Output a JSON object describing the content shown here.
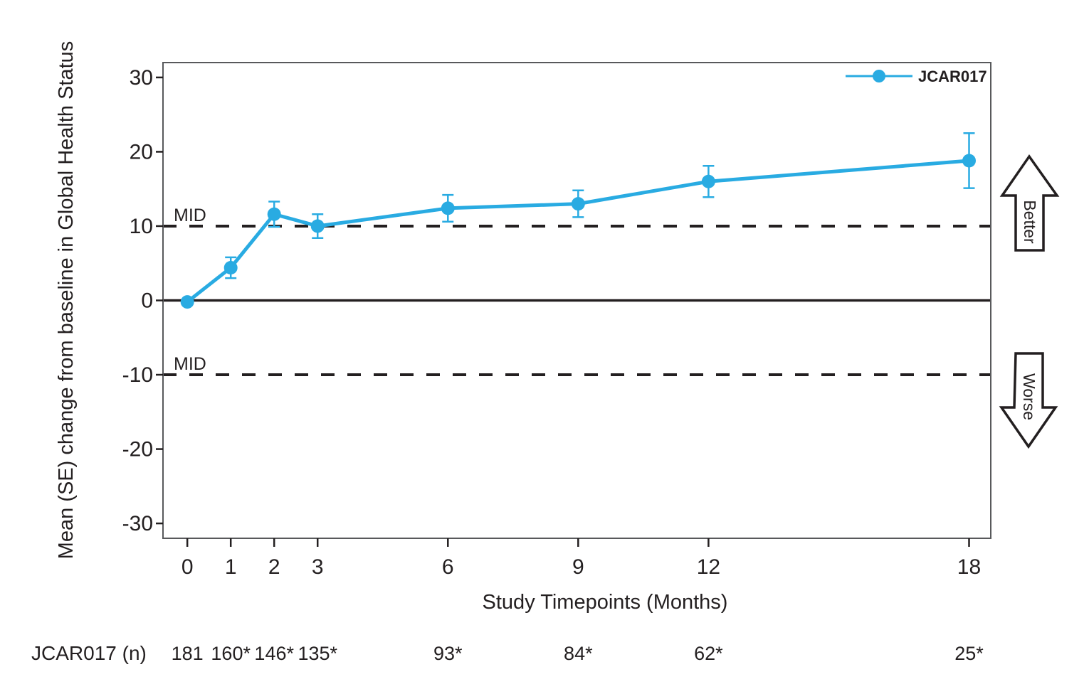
{
  "colors": {
    "series": "#29ABE2",
    "axis_frame": "#58595B",
    "ink": "#231F20",
    "background": "#FFFFFF"
  },
  "chart_data": {
    "type": "line",
    "title": "",
    "xlabel": "Study Timepoints (Months)",
    "ylabel": "Mean (SE) change from baseline in Global Health Status",
    "x": [
      0,
      1,
      2,
      3,
      6,
      9,
      12,
      18
    ],
    "x_tick_labels": [
      "0",
      "1",
      "2",
      "3",
      "6",
      "9",
      "12",
      "18"
    ],
    "y_ticks": [
      30,
      20,
      10,
      0,
      -10,
      -20,
      -30
    ],
    "y_tick_labels": [
      "30",
      "20",
      "10",
      "0",
      "-10",
      "-20",
      "-30"
    ],
    "ylim": [
      -32,
      32
    ],
    "xlim": [
      -0.56,
      18.5
    ],
    "grid": false,
    "series": [
      {
        "name": "JCAR017",
        "color": "#29ABE2",
        "means": [
          -0.2,
          4.4,
          11.6,
          10.0,
          12.4,
          13.0,
          16.0,
          18.8
        ],
        "se": [
          0.0,
          1.4,
          1.7,
          1.6,
          1.8,
          1.8,
          2.1,
          3.7
        ]
      }
    ],
    "reference_lines": [
      {
        "y": 10,
        "style": "dashed",
        "label": "MID"
      },
      {
        "y": -10,
        "style": "dashed",
        "label": "MID"
      },
      {
        "y": 0,
        "style": "solid",
        "label": ""
      }
    ],
    "legend": {
      "position": "top-right-inside",
      "entries": [
        {
          "label": "JCAR017",
          "color": "#29ABE2"
        }
      ]
    },
    "annotations": [
      {
        "type": "arrow-up",
        "label": "Better"
      },
      {
        "type": "arrow-down",
        "label": "Worse"
      }
    ],
    "n_row": {
      "label": "JCAR017 (n)",
      "values": [
        "181",
        "160*",
        "146*",
        "135*",
        "93*",
        "84*",
        "62*",
        "25*"
      ]
    }
  }
}
